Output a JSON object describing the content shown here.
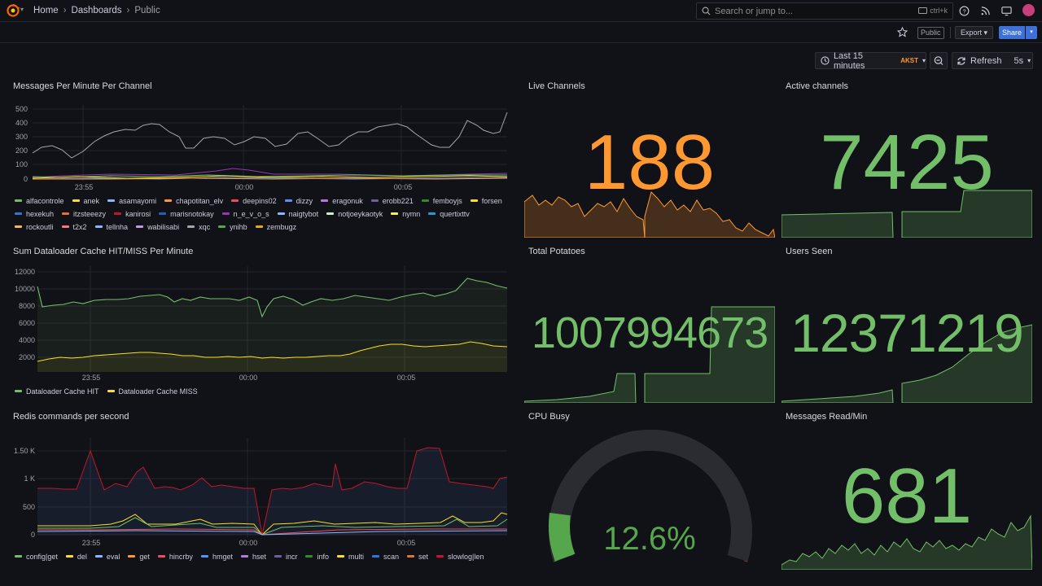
{
  "topbar": {
    "breadcrumb": [
      "Home",
      "Dashboards",
      "Public"
    ],
    "search_placeholder": "Search or jump to...",
    "search_shortcut": "ctrl+k",
    "icons": [
      "grafana-logo-icon",
      "help-icon",
      "news-icon",
      "kiosk-icon",
      "avatar"
    ]
  },
  "subbar": {
    "public_badge": "Public",
    "export_label": "Export",
    "share_label": "Share"
  },
  "controls": {
    "time_range": "Last 15 minutes",
    "timezone": "AKST",
    "refresh_label": "Refresh",
    "refresh_interval": "5s"
  },
  "colors": {
    "green": "#73bf69",
    "orange": "#ff9830",
    "yellow": "#fade2a",
    "red": "#f2495c",
    "blue": "#5794f2"
  },
  "panels": {
    "messages": {
      "title": "Messages Per Minute Per Channel",
      "y_ticks": [
        "500",
        "400",
        "300",
        "200",
        "100",
        "0"
      ],
      "x_ticks": [
        "23:55",
        "00:00",
        "00:05"
      ],
      "legend": [
        {
          "name": "alfacontrole",
          "color": "#73bf69"
        },
        {
          "name": "anek",
          "color": "#fade2a"
        },
        {
          "name": "asamayomi",
          "color": "#8ab8ff"
        },
        {
          "name": "chapotitan_elv",
          "color": "#ff9830"
        },
        {
          "name": "deepins02",
          "color": "#f2495c"
        },
        {
          "name": "dizzy",
          "color": "#5794f2"
        },
        {
          "name": "eragonuk",
          "color": "#b877d9"
        },
        {
          "name": "erobb221",
          "color": "#705da0"
        },
        {
          "name": "femboyjs",
          "color": "#37872d"
        },
        {
          "name": "forsen",
          "color": "#fade2a"
        },
        {
          "name": "hexekuh",
          "color": "#3274d9"
        },
        {
          "name": "itzsteeezy",
          "color": "#e0752d"
        },
        {
          "name": "kanirosi",
          "color": "#c4162a"
        },
        {
          "name": "marisnotokay",
          "color": "#1f60c4"
        },
        {
          "name": "n_e_v_o_s",
          "color": "#8f3bb8"
        },
        {
          "name": "naigtybot",
          "color": "#8ab8ff"
        },
        {
          "name": "notjoeykaotyk",
          "color": "#c8f2c2"
        },
        {
          "name": "nymn",
          "color": "#ffee52"
        },
        {
          "name": "quertixttv",
          "color": "#1f9ed1"
        },
        {
          "name": "rockoutli",
          "color": "#ffb357"
        },
        {
          "name": "t2x2",
          "color": "#ff7383"
        },
        {
          "name": "tellnha",
          "color": "#8ab8ff"
        },
        {
          "name": "wabilisabi",
          "color": "#ca95e5"
        },
        {
          "name": "xqc",
          "color": "#a5a6ab"
        },
        {
          "name": "ynihb",
          "color": "#56a64b"
        },
        {
          "name": "zembugz",
          "color": "#e5ac0e"
        }
      ]
    },
    "cache": {
      "title": "Sum Dataloader Cache HIT/MISS Per Minute",
      "y_ticks": [
        "12000",
        "10000",
        "8000",
        "6000",
        "4000",
        "2000"
      ],
      "x_ticks": [
        "23:55",
        "00:00",
        "00:05"
      ],
      "legend": [
        {
          "name": "Dataloader Cache HIT",
          "color": "#73bf69"
        },
        {
          "name": "Dataloader Cache MISS",
          "color": "#fade2a"
        }
      ]
    },
    "redis": {
      "title": "Redis commands per second",
      "y_ticks": [
        "1.50 K",
        "1 K",
        "500",
        "0"
      ],
      "x_ticks": [
        "23:55",
        "00:00",
        "00:05"
      ],
      "legend": [
        {
          "name": "config|get",
          "color": "#73bf69"
        },
        {
          "name": "del",
          "color": "#fade2a"
        },
        {
          "name": "eval",
          "color": "#8ab8ff"
        },
        {
          "name": "get",
          "color": "#ff9830"
        },
        {
          "name": "hincrby",
          "color": "#f2495c"
        },
        {
          "name": "hmget",
          "color": "#5794f2"
        },
        {
          "name": "hset",
          "color": "#b877d9"
        },
        {
          "name": "incr",
          "color": "#705da0"
        },
        {
          "name": "info",
          "color": "#37872d"
        },
        {
          "name": "multi",
          "color": "#fade2a"
        },
        {
          "name": "scan",
          "color": "#3274d9"
        },
        {
          "name": "set",
          "color": "#e0752d"
        },
        {
          "name": "slowlog|len",
          "color": "#c4162a"
        }
      ]
    },
    "live_channels": {
      "title": "Live Channels",
      "value": "188",
      "color": "#ff9830"
    },
    "active_channels": {
      "title": "Active channels",
      "value": "7425",
      "color": "#73bf69"
    },
    "total_potatoes": {
      "title": "Total Potatoes",
      "value": "1007994673",
      "color": "#73bf69"
    },
    "users_seen": {
      "title": "Users Seen",
      "value": "12371219",
      "color": "#73bf69"
    },
    "cpu_busy": {
      "title": "CPU Busy",
      "value": "12.6%",
      "fraction": 0.126,
      "color": "#56a64b"
    },
    "messages_read": {
      "title": "Messages Read/Min",
      "value": "681",
      "color": "#73bf69"
    }
  }
}
